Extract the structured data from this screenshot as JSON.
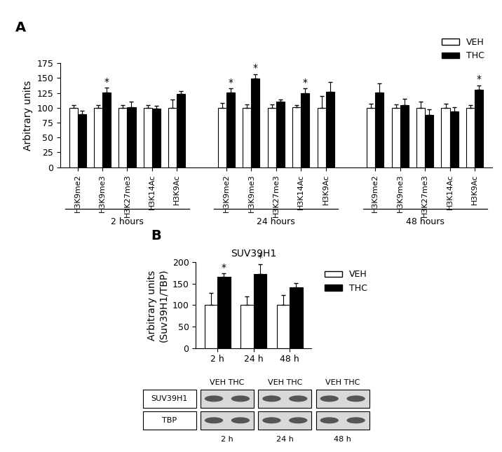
{
  "chart_data": [
    {
      "type": "bar",
      "panel": "A",
      "y_label": "Arbitrary units",
      "ylim": [
        0,
        175
      ],
      "yticks": [
        0,
        25,
        50,
        75,
        100,
        125,
        150,
        175
      ],
      "legend": "upper right",
      "series": [
        {
          "name": "VEH",
          "color": "#ffffff"
        },
        {
          "name": "THC",
          "color": "#000000"
        }
      ],
      "groups": [
        {
          "name": "2 hours",
          "categories": [
            "H3K9me2",
            "H3K9me3",
            "H3K27me3",
            "H3K14Ac",
            "H3K9Ac"
          ],
          "values": [
            [
              100,
              100,
              100,
              100,
              100
            ],
            [
              89,
              126,
              101,
              99,
              123
            ]
          ],
          "errors": [
            [
              4,
              5,
              4,
              4,
              14
            ],
            [
              6,
              8,
              10,
              4,
              5
            ]
          ],
          "annotations": [
            [
              null,
              null,
              null,
              null,
              null
            ],
            [
              null,
              "*",
              null,
              null,
              null
            ]
          ]
        },
        {
          "name": "24 hours",
          "categories": [
            "H3K9me2",
            "H3K9me3",
            "H3K27me3",
            "H3K14Ac",
            "H3K9Ac"
          ],
          "values": [
            [
              100,
              100,
              100,
              101,
              100
            ],
            [
              126,
              149,
              110,
              125,
              127
            ]
          ],
          "errors": [
            [
              8,
              6,
              6,
              4,
              20
            ],
            [
              7,
              8,
              4,
              8,
              17
            ]
          ],
          "annotations": [
            [
              null,
              null,
              null,
              null,
              null
            ],
            [
              "*",
              "*",
              null,
              "*",
              null
            ]
          ]
        },
        {
          "name": "48 hours",
          "categories": [
            "H3K9me2",
            "H3K9me3",
            "H3K27me3",
            "H3K14Ac",
            "H3K9Ac"
          ],
          "values": [
            [
              100,
              100,
              100,
              100,
              100
            ],
            [
              126,
              105,
              88,
              94,
              130
            ]
          ],
          "errors": [
            [
              7,
              6,
              10,
              7,
              5
            ],
            [
              15,
              10,
              10,
              7,
              8
            ]
          ],
          "annotations": [
            [
              null,
              null,
              null,
              null,
              null
            ],
            [
              null,
              null,
              null,
              null,
              "*"
            ]
          ]
        }
      ]
    },
    {
      "type": "bar",
      "panel": "B",
      "title": "SUV39H1",
      "y_label": "Arbitrary units\n(Suv39H1/TBP)",
      "ylim": [
        0,
        200
      ],
      "yticks": [
        0,
        50,
        100,
        150,
        200
      ],
      "legend": "upper left",
      "categories": [
        "2 h",
        "24 h",
        "48 h"
      ],
      "series": [
        {
          "name": "VEH",
          "color": "#ffffff",
          "values": [
            100,
            100,
            100
          ],
          "errors": [
            29,
            21,
            23
          ],
          "annotations": [
            null,
            null,
            null
          ]
        },
        {
          "name": "THC",
          "color": "#000000",
          "values": [
            166,
            172,
            141
          ],
          "errors": [
            8,
            24,
            10
          ],
          "annotations": [
            "*",
            "*",
            null
          ]
        }
      ],
      "blot": {
        "rows": [
          "SUV39H1",
          "TBP"
        ],
        "lanes": [
          "VEH",
          "THC"
        ],
        "timepoints": [
          "2 h",
          "24 h",
          "48 h"
        ]
      }
    }
  ]
}
